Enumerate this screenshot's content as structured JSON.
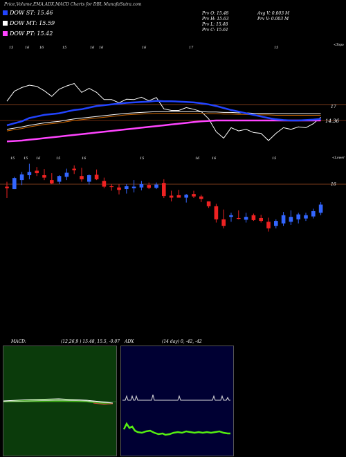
{
  "header": {
    "title": "Price,Volume,EMA,ADX,MACD Charts for DBL",
    "site": "MunafaSutra.com"
  },
  "legend": [
    {
      "label": "DOW ST: 15.46",
      "color": "#2244ff"
    },
    {
      "label": "DOW MT: 15.59",
      "color": "#ffffff"
    },
    {
      "label": "DOW PT: 15.42",
      "color": "#ff44ff"
    }
  ],
  "ohlc": {
    "prev_open": "Prv   O: 15.48",
    "prev_high": "Prv   H: 15.63",
    "prev_low": "Prv   L: 15.48",
    "prev_close": "Prv   C: 15.61",
    "avg_vol": "Avg V: 0.003 M",
    "prev_vol": "Prv   V: 0.003 M"
  },
  "ema_panel": {
    "date_labels": [
      "15",
      "16",
      "16",
      "15",
      "16",
      "16",
      "16",
      "17",
      "15"
    ],
    "topo_label": "<Topo",
    "level_labels": [
      "17",
      "14.36"
    ]
  },
  "price_panel": {
    "date_labels": [
      "15",
      "15",
      "16",
      "15",
      "16",
      "15",
      "16",
      "16",
      "15"
    ],
    "lower_label": "<Lower",
    "level_label": "16"
  },
  "macd": {
    "label": "MACD:",
    "params": "(12,26,9 ) 15.48,  15.5, -0.07"
  },
  "adx": {
    "label": "ADX",
    "params": "(14  day) 0,  -42,  -42"
  },
  "colors": {
    "background": "#000000",
    "up": "#3366ff",
    "down": "#ee2222",
    "st_line": "#2244ff",
    "mt_line": "#ffffff",
    "pt_line": "#ff44ff",
    "macd_bg": "#0b3b0b",
    "adx_bg": "#000033",
    "adx_plus": "#55ee11"
  },
  "chart_data": {
    "type": "candlestick",
    "title": "Price,Volume,EMA,ADX,MACD Charts for DBL",
    "candles": [
      {
        "o": 15.94,
        "h": 16.06,
        "l": 15.66,
        "c": 15.9
      },
      {
        "o": 15.88,
        "h": 16.18,
        "l": 15.88,
        "c": 16.15
      },
      {
        "o": 16.1,
        "h": 16.3,
        "l": 15.98,
        "c": 16.24
      },
      {
        "o": 16.22,
        "h": 16.5,
        "l": 16.12,
        "c": 16.3
      },
      {
        "o": 16.33,
        "h": 16.42,
        "l": 16.2,
        "c": 16.27
      },
      {
        "o": 16.22,
        "h": 16.37,
        "l": 16.1,
        "c": 16.16
      },
      {
        "o": 16.1,
        "h": 16.27,
        "l": 16.0,
        "c": 16.02
      },
      {
        "o": 16.06,
        "h": 16.22,
        "l": 16.0,
        "c": 16.2
      },
      {
        "o": 16.18,
        "h": 16.38,
        "l": 16.1,
        "c": 16.28
      },
      {
        "o": 16.38,
        "h": 16.46,
        "l": 16.25,
        "c": 16.34
      },
      {
        "o": 16.2,
        "h": 16.4,
        "l": 16.06,
        "c": 16.12
      },
      {
        "o": 16.06,
        "h": 16.24,
        "l": 15.99,
        "c": 16.22
      },
      {
        "o": 16.23,
        "h": 16.36,
        "l": 16.1,
        "c": 16.12
      },
      {
        "o": 16.08,
        "h": 16.16,
        "l": 15.9,
        "c": 15.94
      },
      {
        "o": 15.95,
        "h": 16.0,
        "l": 15.84,
        "c": 15.94
      },
      {
        "o": 15.92,
        "h": 16.0,
        "l": 15.75,
        "c": 15.86
      },
      {
        "o": 15.88,
        "h": 16.0,
        "l": 15.77,
        "c": 15.95
      },
      {
        "o": 15.9,
        "h": 16.1,
        "l": 15.8,
        "c": 15.94
      },
      {
        "o": 15.92,
        "h": 16.08,
        "l": 15.85,
        "c": 16.0
      },
      {
        "o": 15.98,
        "h": 16.04,
        "l": 15.88,
        "c": 15.91
      },
      {
        "o": 15.91,
        "h": 16.04,
        "l": 15.88,
        "c": 15.99
      },
      {
        "o": 16.03,
        "h": 16.12,
        "l": 15.66,
        "c": 15.71
      },
      {
        "o": 15.72,
        "h": 15.84,
        "l": 15.58,
        "c": 15.67
      },
      {
        "o": 15.73,
        "h": 15.86,
        "l": 15.67,
        "c": 15.67
      },
      {
        "o": 15.67,
        "h": 15.76,
        "l": 15.55,
        "c": 15.74
      },
      {
        "o": 15.76,
        "h": 15.84,
        "l": 15.66,
        "c": 15.7
      },
      {
        "o": 15.7,
        "h": 15.74,
        "l": 15.56,
        "c": 15.64
      },
      {
        "o": 15.58,
        "h": 15.58,
        "l": 15.42,
        "c": 15.46
      },
      {
        "o": 15.46,
        "h": 15.52,
        "l": 15.06,
        "c": 15.14
      },
      {
        "o": 15.14,
        "h": 15.38,
        "l": 14.92,
        "c": 14.98
      },
      {
        "o": 15.2,
        "h": 15.3,
        "l": 15.08,
        "c": 15.24
      },
      {
        "o": 15.17,
        "h": 15.36,
        "l": 15.14,
        "c": 15.16
      },
      {
        "o": 15.13,
        "h": 15.3,
        "l": 15.06,
        "c": 15.2
      },
      {
        "o": 15.24,
        "h": 15.28,
        "l": 15.1,
        "c": 15.12
      },
      {
        "o": 15.17,
        "h": 15.25,
        "l": 15.06,
        "c": 15.1
      },
      {
        "o": 15.08,
        "h": 15.18,
        "l": 14.84,
        "c": 14.92
      },
      {
        "o": 14.98,
        "h": 15.14,
        "l": 14.92,
        "c": 15.1
      },
      {
        "o": 15.04,
        "h": 15.32,
        "l": 14.98,
        "c": 15.24
      },
      {
        "o": 15.08,
        "h": 15.36,
        "l": 15.0,
        "c": 15.2
      },
      {
        "o": 15.14,
        "h": 15.3,
        "l": 15.04,
        "c": 15.26
      },
      {
        "o": 15.16,
        "h": 15.3,
        "l": 15.1,
        "c": 15.24
      },
      {
        "o": 15.21,
        "h": 15.4,
        "l": 15.16,
        "c": 15.34
      },
      {
        "o": 15.3,
        "h": 15.56,
        "l": 15.24,
        "c": 15.5
      }
    ],
    "ema": {
      "st": [
        15.3,
        15.35,
        15.4,
        15.48,
        15.52,
        15.56,
        15.58,
        15.6,
        15.64,
        15.68,
        15.7,
        15.74,
        15.78,
        15.8,
        15.82,
        15.84,
        15.86,
        15.87,
        15.88,
        15.89,
        15.91,
        15.9,
        15.9,
        15.89,
        15.88,
        15.87,
        15.85,
        15.82,
        15.78,
        15.73,
        15.68,
        15.64,
        15.6,
        15.56,
        15.52,
        15.48,
        15.45,
        15.43,
        15.42,
        15.42,
        15.43,
        15.44,
        15.46
      ],
      "mt": [
        15.2,
        15.23,
        15.26,
        15.3,
        15.33,
        15.36,
        15.38,
        15.4,
        15.43,
        15.46,
        15.48,
        15.5,
        15.52,
        15.54,
        15.56,
        15.58,
        15.6,
        15.61,
        15.62,
        15.63,
        15.64,
        15.64,
        15.64,
        15.64,
        15.64,
        15.64,
        15.64,
        15.63,
        15.63,
        15.62,
        15.62,
        15.61,
        15.61,
        15.6,
        15.6,
        15.6,
        15.59,
        15.59,
        15.59,
        15.59,
        15.59,
        15.59,
        15.59
      ],
      "pt": [
        14.9,
        14.91,
        14.92,
        14.94,
        14.96,
        14.98,
        15.0,
        15.02,
        15.04,
        15.06,
        15.08,
        15.1,
        15.12,
        15.14,
        15.16,
        15.18,
        15.2,
        15.22,
        15.24,
        15.26,
        15.28,
        15.3,
        15.32,
        15.34,
        15.36,
        15.38,
        15.4,
        15.41,
        15.42,
        15.42,
        15.42,
        15.42,
        15.42,
        15.42,
        15.42,
        15.42,
        15.42,
        15.42,
        15.42,
        15.42,
        15.42,
        15.42,
        15.42
      ]
    },
    "macd_value": 15.48,
    "macd_signal": 15.5,
    "macd_hist": -0.07,
    "adx": {
      "adx": 0,
      "plus_di": -42,
      "minus_di": -42
    }
  }
}
